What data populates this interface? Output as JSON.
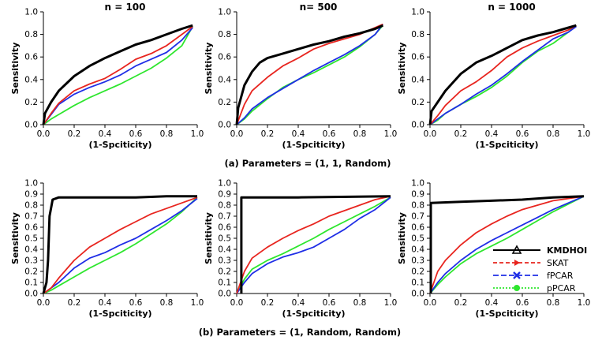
{
  "figure_captions": {
    "row_a": "(a) Parameters = (1, 1, Random)",
    "row_b": "(b) Parameters = (1, Random, Random)"
  },
  "colors": {
    "KMDHOI": "#000000",
    "SKAT": "#e8251f",
    "fPCAR": "#1f2ee6",
    "pPCAR": "#2ee62e"
  },
  "chart_data": [
    {
      "type": "line",
      "panel": "a1",
      "title": "n = 100",
      "xlabel": "(1-Spciticity)",
      "ylabel": "Sensitivity",
      "xlim": [
        0,
        1
      ],
      "ylim": [
        0,
        1
      ],
      "xticks": [
        "0.0",
        "0.2",
        "0.4",
        "0.6",
        "0.8",
        "1.0"
      ],
      "yticks": [
        "0.0",
        "0.2",
        "0.4",
        "0.6",
        "0.8",
        "1.0"
      ],
      "series": [
        {
          "name": "KMDHOI",
          "x": [
            0,
            0.01,
            0.05,
            0.1,
            0.2,
            0.3,
            0.4,
            0.5,
            0.6,
            0.7,
            0.8,
            0.9,
            0.97
          ],
          "y": [
            0,
            0.1,
            0.2,
            0.3,
            0.43,
            0.52,
            0.59,
            0.65,
            0.71,
            0.75,
            0.8,
            0.85,
            0.88
          ]
        },
        {
          "name": "SKAT",
          "x": [
            0,
            0.05,
            0.1,
            0.2,
            0.3,
            0.4,
            0.5,
            0.6,
            0.7,
            0.8,
            0.9,
            0.97
          ],
          "y": [
            0,
            0.1,
            0.19,
            0.3,
            0.36,
            0.41,
            0.49,
            0.58,
            0.63,
            0.7,
            0.8,
            0.87
          ]
        },
        {
          "name": "fPCAR",
          "x": [
            0,
            0.05,
            0.1,
            0.2,
            0.3,
            0.4,
            0.5,
            0.6,
            0.7,
            0.8,
            0.9,
            0.97
          ],
          "y": [
            0,
            0.09,
            0.18,
            0.27,
            0.33,
            0.38,
            0.44,
            0.52,
            0.58,
            0.64,
            0.75,
            0.86
          ]
        },
        {
          "name": "pPCAR",
          "x": [
            0,
            0.05,
            0.1,
            0.2,
            0.3,
            0.4,
            0.5,
            0.6,
            0.7,
            0.8,
            0.9,
            0.97
          ],
          "y": [
            0,
            0.05,
            0.09,
            0.17,
            0.24,
            0.3,
            0.36,
            0.43,
            0.5,
            0.59,
            0.7,
            0.87
          ]
        }
      ]
    },
    {
      "type": "line",
      "panel": "a2",
      "title": "n= 500",
      "xlabel": "(1-Spciticity)",
      "ylabel": "Sensitivity",
      "xlim": [
        0,
        1
      ],
      "ylim": [
        0,
        1
      ],
      "xticks": [
        "0.0",
        "0.2",
        "0.4",
        "0.6",
        "0.8",
        "1.0"
      ],
      "yticks": [
        "0.0",
        "0.2",
        "0.4",
        "0.6",
        "0.8",
        "1.0"
      ],
      "series": [
        {
          "name": "KMDHOI",
          "x": [
            0,
            0.01,
            0.05,
            0.1,
            0.15,
            0.2,
            0.3,
            0.4,
            0.5,
            0.6,
            0.7,
            0.8,
            0.9,
            0.95
          ],
          "y": [
            0,
            0.15,
            0.35,
            0.47,
            0.55,
            0.59,
            0.63,
            0.67,
            0.71,
            0.74,
            0.78,
            0.81,
            0.85,
            0.88
          ]
        },
        {
          "name": "SKAT",
          "x": [
            0,
            0.05,
            0.1,
            0.2,
            0.3,
            0.4,
            0.5,
            0.6,
            0.7,
            0.8,
            0.9,
            0.95
          ],
          "y": [
            0,
            0.18,
            0.3,
            0.42,
            0.52,
            0.59,
            0.67,
            0.72,
            0.76,
            0.8,
            0.86,
            0.89
          ]
        },
        {
          "name": "fPCAR",
          "x": [
            0,
            0.05,
            0.1,
            0.2,
            0.3,
            0.4,
            0.5,
            0.6,
            0.7,
            0.8,
            0.9,
            0.95
          ],
          "y": [
            0,
            0.06,
            0.14,
            0.24,
            0.32,
            0.4,
            0.48,
            0.55,
            0.62,
            0.7,
            0.8,
            0.89
          ]
        },
        {
          "name": "pPCAR",
          "x": [
            0,
            0.05,
            0.1,
            0.2,
            0.3,
            0.4,
            0.5,
            0.6,
            0.7,
            0.8,
            0.9,
            0.95
          ],
          "y": [
            0,
            0.05,
            0.12,
            0.23,
            0.33,
            0.4,
            0.46,
            0.53,
            0.6,
            0.69,
            0.8,
            0.88
          ]
        }
      ]
    },
    {
      "type": "line",
      "panel": "a3",
      "title": "n = 1000",
      "xlabel": "(1-Spciticity)",
      "ylabel": "Sensitivity",
      "xlim": [
        0,
        1
      ],
      "ylim": [
        0,
        1
      ],
      "xticks": [
        "0.0",
        "0.2",
        "0.4",
        "0.6",
        "0.8",
        "1.0"
      ],
      "yticks": [
        "0.0",
        "0.2",
        "0.4",
        "0.6",
        "0.8",
        "1.0"
      ],
      "series": [
        {
          "name": "KMDHOI",
          "x": [
            0,
            0.01,
            0.05,
            0.1,
            0.2,
            0.3,
            0.4,
            0.5,
            0.6,
            0.7,
            0.8,
            0.9,
            0.95
          ],
          "y": [
            0,
            0.12,
            0.2,
            0.3,
            0.45,
            0.55,
            0.61,
            0.68,
            0.75,
            0.79,
            0.82,
            0.86,
            0.88
          ]
        },
        {
          "name": "SKAT",
          "x": [
            0,
            0.05,
            0.1,
            0.2,
            0.3,
            0.4,
            0.5,
            0.6,
            0.7,
            0.8,
            0.9,
            0.95
          ],
          "y": [
            0,
            0.08,
            0.17,
            0.3,
            0.38,
            0.48,
            0.6,
            0.68,
            0.74,
            0.79,
            0.84,
            0.88
          ]
        },
        {
          "name": "fPCAR",
          "x": [
            0,
            0.05,
            0.1,
            0.2,
            0.3,
            0.4,
            0.5,
            0.6,
            0.7,
            0.8,
            0.9,
            0.95
          ],
          "y": [
            0,
            0.05,
            0.1,
            0.18,
            0.27,
            0.35,
            0.45,
            0.56,
            0.66,
            0.76,
            0.82,
            0.87
          ]
        },
        {
          "name": "pPCAR",
          "x": [
            0,
            0.05,
            0.1,
            0.2,
            0.3,
            0.4,
            0.5,
            0.6,
            0.7,
            0.8,
            0.9,
            0.95
          ],
          "y": [
            0,
            0.04,
            0.1,
            0.18,
            0.25,
            0.33,
            0.43,
            0.55,
            0.65,
            0.72,
            0.82,
            0.88
          ]
        }
      ]
    },
    {
      "type": "line",
      "panel": "b1",
      "title": "",
      "xlabel": "(1-Spciticity)",
      "ylabel": "Sensitivity",
      "xlim": [
        0,
        1
      ],
      "ylim": [
        0,
        1
      ],
      "xticks": [
        "0.0",
        "0.2",
        "0.4",
        "0.6",
        "0.8",
        "1.0"
      ],
      "yticks": [
        "0.0",
        "0.1",
        "0.2",
        "0.3",
        "0.4",
        "0.5",
        "0.6",
        "0.7",
        "0.8",
        "0.9",
        "1.0"
      ],
      "series": [
        {
          "name": "KMDHOI",
          "x": [
            0,
            0.02,
            0.03,
            0.04,
            0.06,
            0.1,
            0.2,
            0.4,
            0.6,
            0.8,
            1.0
          ],
          "y": [
            0,
            0.1,
            0.3,
            0.7,
            0.85,
            0.87,
            0.87,
            0.87,
            0.87,
            0.88,
            0.88
          ]
        },
        {
          "name": "SKAT",
          "x": [
            0,
            0.05,
            0.1,
            0.2,
            0.3,
            0.4,
            0.5,
            0.6,
            0.7,
            0.8,
            0.9,
            1.0
          ],
          "y": [
            0,
            0.05,
            0.14,
            0.3,
            0.42,
            0.5,
            0.58,
            0.65,
            0.72,
            0.77,
            0.82,
            0.87
          ]
        },
        {
          "name": "fPCAR",
          "x": [
            0,
            0.05,
            0.1,
            0.2,
            0.3,
            0.4,
            0.5,
            0.6,
            0.7,
            0.8,
            0.9,
            1.0
          ],
          "y": [
            0,
            0.05,
            0.1,
            0.23,
            0.32,
            0.37,
            0.44,
            0.5,
            0.58,
            0.66,
            0.75,
            0.86
          ]
        },
        {
          "name": "pPCAR",
          "x": [
            0,
            0.05,
            0.1,
            0.2,
            0.3,
            0.4,
            0.5,
            0.6,
            0.7,
            0.8,
            0.9,
            1.0
          ],
          "y": [
            0,
            0.03,
            0.07,
            0.15,
            0.23,
            0.3,
            0.37,
            0.45,
            0.54,
            0.63,
            0.74,
            0.87
          ]
        }
      ]
    },
    {
      "type": "line",
      "panel": "b2",
      "title": "",
      "xlabel": "(1-Spciticity)",
      "ylabel": "Sensitivity",
      "xlim": [
        0,
        1
      ],
      "ylim": [
        0,
        1
      ],
      "xticks": [
        "0.0",
        "0.2",
        "0.4",
        "0.6",
        "0.8",
        "1.0"
      ],
      "yticks": [
        "0.0",
        "0.1",
        "0.2",
        "0.3",
        "0.4",
        "0.5",
        "0.6",
        "0.7",
        "0.8",
        "0.9",
        "1.0"
      ],
      "series": [
        {
          "name": "KMDHOI",
          "x": [
            0.03,
            0.03,
            0.03,
            0.4,
            1.0
          ],
          "y": [
            0,
            0.3,
            0.87,
            0.87,
            0.88
          ]
        },
        {
          "name": "SKAT",
          "x": [
            0,
            0.05,
            0.1,
            0.2,
            0.3,
            0.4,
            0.5,
            0.6,
            0.7,
            0.8,
            0.9,
            1.0
          ],
          "y": [
            0,
            0.2,
            0.32,
            0.42,
            0.5,
            0.57,
            0.63,
            0.7,
            0.75,
            0.8,
            0.85,
            0.88
          ]
        },
        {
          "name": "fPCAR",
          "x": [
            0,
            0.05,
            0.1,
            0.2,
            0.3,
            0.4,
            0.5,
            0.6,
            0.7,
            0.8,
            0.9,
            1.0
          ],
          "y": [
            0,
            0.1,
            0.18,
            0.27,
            0.33,
            0.37,
            0.42,
            0.5,
            0.58,
            0.68,
            0.76,
            0.87
          ]
        },
        {
          "name": "pPCAR",
          "x": [
            0,
            0.05,
            0.1,
            0.2,
            0.3,
            0.4,
            0.5,
            0.6,
            0.7,
            0.8,
            0.9,
            1.0
          ],
          "y": [
            0,
            0.13,
            0.22,
            0.3,
            0.36,
            0.43,
            0.5,
            0.58,
            0.65,
            0.72,
            0.79,
            0.87
          ]
        }
      ]
    },
    {
      "type": "line",
      "panel": "b3",
      "title": "",
      "xlabel": "(1-Spciticity)",
      "ylabel": "Sensitivity",
      "xlim": [
        0,
        1
      ],
      "ylim": [
        0,
        1
      ],
      "xticks": [
        "0.0",
        "0.2",
        "0.4",
        "0.6",
        "0.8",
        "1.0"
      ],
      "yticks": [
        "0.0",
        "0.1",
        "0.2",
        "0.3",
        "0.4",
        "0.5",
        "0.6",
        "0.7",
        "0.8",
        "0.9",
        "1.0"
      ],
      "legend": {
        "placement": "bottom-right",
        "entries": [
          "KMDHOI",
          "SKAT",
          "fPCAR",
          "pPCAR"
        ]
      },
      "series": [
        {
          "name": "KMDHOI",
          "x": [
            0.005,
            0.005,
            0.005,
            0.2,
            0.4,
            0.6,
            0.8,
            1.0
          ],
          "y": [
            0,
            0.4,
            0.82,
            0.83,
            0.84,
            0.85,
            0.87,
            0.88
          ]
        },
        {
          "name": "SKAT",
          "x": [
            0,
            0.05,
            0.1,
            0.2,
            0.3,
            0.4,
            0.5,
            0.6,
            0.7,
            0.8,
            0.9,
            1.0
          ],
          "y": [
            0,
            0.2,
            0.3,
            0.44,
            0.55,
            0.63,
            0.7,
            0.76,
            0.8,
            0.84,
            0.86,
            0.88
          ]
        },
        {
          "name": "fPCAR",
          "x": [
            0,
            0.05,
            0.1,
            0.2,
            0.3,
            0.4,
            0.5,
            0.6,
            0.7,
            0.8,
            0.9,
            1.0
          ],
          "y": [
            0,
            0.1,
            0.18,
            0.3,
            0.4,
            0.48,
            0.55,
            0.62,
            0.69,
            0.76,
            0.82,
            0.88
          ]
        },
        {
          "name": "pPCAR",
          "x": [
            0,
            0.05,
            0.1,
            0.2,
            0.3,
            0.4,
            0.5,
            0.6,
            0.7,
            0.8,
            0.9,
            1.0
          ],
          "y": [
            0,
            0.08,
            0.15,
            0.27,
            0.36,
            0.43,
            0.5,
            0.58,
            0.66,
            0.74,
            0.81,
            0.88
          ]
        }
      ]
    }
  ]
}
